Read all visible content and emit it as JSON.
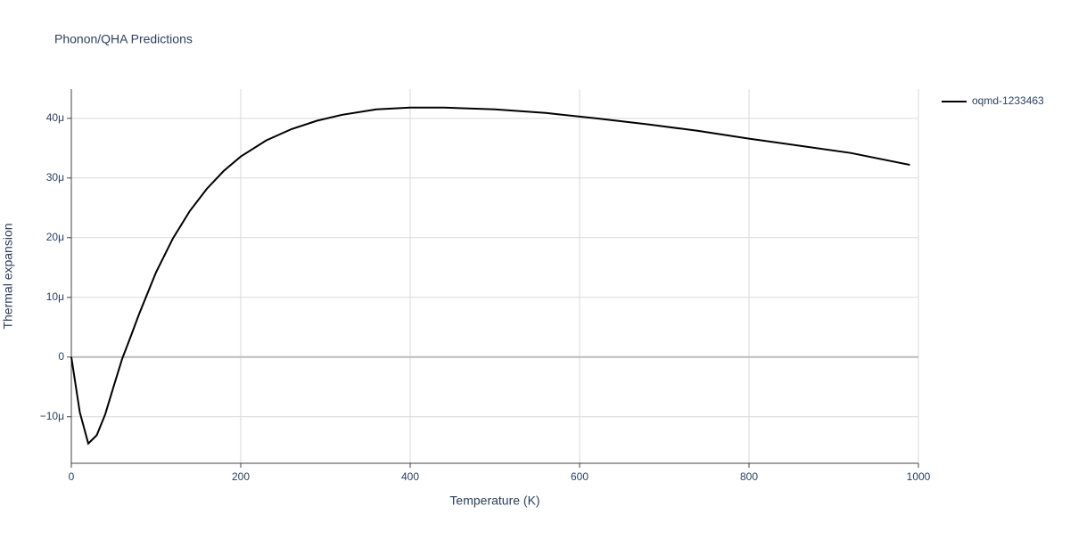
{
  "chart_data": {
    "type": "line",
    "title": "Phonon/QHA Predictions",
    "x_label": "Temperature (K)",
    "y_label": "Thermal expansion",
    "x": [
      0,
      10,
      20,
      30,
      40,
      50,
      60,
      70,
      80,
      100,
      120,
      140,
      160,
      180,
      200,
      230,
      260,
      290,
      320,
      360,
      400,
      440,
      500,
      560,
      620,
      680,
      740,
      800,
      860,
      920,
      990
    ],
    "series": [
      {
        "name": "oqmd-1233463",
        "color": "#000000",
        "values": [
          0,
          -9.25e-06,
          -1.45e-05,
          -1.31e-05,
          -9.6e-06,
          -4.9e-06,
          -3e-07,
          3.4e-06,
          7.2e-06,
          1.42e-05,
          1.99e-05,
          2.45e-05,
          2.82e-05,
          3.12e-05,
          3.36e-05,
          3.63e-05,
          3.82e-05,
          3.96e-05,
          4.06e-05,
          4.15e-05,
          4.18e-05,
          4.18e-05,
          4.15e-05,
          4.09e-05,
          4e-05,
          3.9e-05,
          3.79e-05,
          3.66e-05,
          3.54e-05,
          3.42e-05,
          3.22e-05
        ]
      }
    ],
    "xlim": [
      0,
      1000
    ],
    "xticks": [
      0,
      200,
      400,
      600,
      800,
      1000
    ],
    "ylim": [
      -1.78e-05,
      4.49e-05
    ],
    "yticks": [
      {
        "value": -1e-05,
        "label": "−10μ"
      },
      0,
      {
        "value": 1e-05,
        "label": "10μ"
      },
      {
        "value": 2e-05,
        "label": "20μ"
      },
      {
        "value": 3e-05,
        "label": "30μ"
      },
      {
        "value": 4e-05,
        "label": "40μ"
      }
    ],
    "grid": true,
    "legend": "right"
  }
}
